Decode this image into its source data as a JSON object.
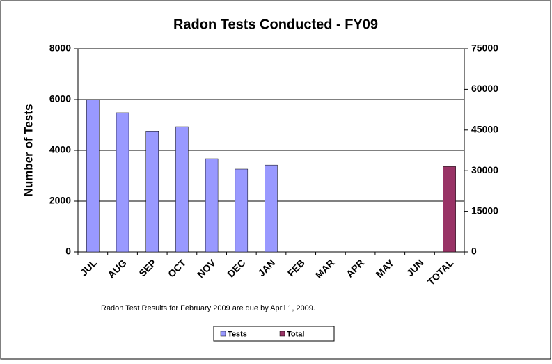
{
  "chart_data": {
    "type": "bar",
    "title": "Radon Tests Conducted - FY09",
    "y_label": "Number of Tests",
    "note": "Radon Test Results for February 2009 are due by April 1, 2009.",
    "categories": [
      "JUL",
      "AUG",
      "SEP",
      "OCT",
      "NOV",
      "DEC",
      "JAN",
      "FEB",
      "MAR",
      "APR",
      "MAY",
      "JUN",
      "TOTAL"
    ],
    "series": [
      {
        "name": "Tests",
        "color": "#9999ff",
        "values": [
          5980,
          5480,
          4760,
          4930,
          3670,
          3260,
          3420,
          null,
          null,
          null,
          null,
          null,
          null
        ]
      },
      {
        "name": "Total",
        "color": "#993366",
        "axis": "y2",
        "values": [
          null,
          null,
          null,
          null,
          null,
          null,
          null,
          null,
          null,
          null,
          null,
          null,
          31500
        ]
      }
    ],
    "ylim": [
      0,
      8000
    ],
    "yticks": [
      0,
      2000,
      4000,
      6000,
      8000
    ],
    "y2lim": [
      0,
      75000
    ],
    "y2ticks": [
      0,
      15000,
      30000,
      45000,
      60000,
      75000
    ],
    "grid": true,
    "legend": "bottom"
  }
}
